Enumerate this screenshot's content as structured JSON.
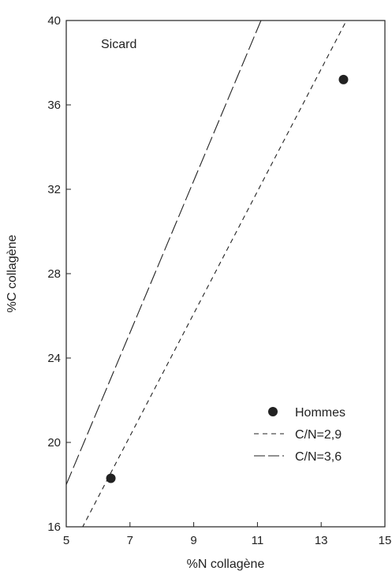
{
  "chart_data": {
    "type": "scatter",
    "title": "",
    "annotation": "Sicard",
    "xlabel": "%N collagène",
    "ylabel": "%C collagène",
    "xlim": [
      5,
      15
    ],
    "ylim": [
      16,
      40
    ],
    "xticks": [
      5,
      7,
      9,
      11,
      13,
      15
    ],
    "yticks": [
      16,
      20,
      24,
      28,
      32,
      36,
      40
    ],
    "grid": false,
    "legend_position": "bottom-right",
    "series": [
      {
        "name": "Hommes",
        "kind": "points",
        "color": "#222222",
        "points": [
          {
            "x": 6.4,
            "y": 18.3
          },
          {
            "x": 13.7,
            "y": 37.2
          }
        ]
      },
      {
        "name": "C/N=2,9",
        "kind": "line",
        "color": "#222222",
        "slope": 2.9,
        "dash": "short"
      },
      {
        "name": "C/N=3,6",
        "kind": "line",
        "color": "#222222",
        "slope": 3.6,
        "dash": "long"
      }
    ]
  }
}
